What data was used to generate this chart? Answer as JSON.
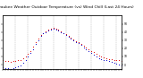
{
  "title": "Milwaukee Weather Outdoor Temperature (vs) Wind Chill (Last 24 Hours)",
  "title_fontsize": 3.2,
  "background_color": "#ffffff",
  "plot_bg_color": "#ffffff",
  "grid_color": "#aaaaaa",
  "ylim": [
    -5,
    60
  ],
  "xlim": [
    0,
    47
  ],
  "yticks": [
    0,
    10,
    20,
    30,
    40,
    50
  ],
  "ytick_labels_right": [
    "0",
    "10",
    "20",
    "30",
    "40",
    "50"
  ],
  "temp_color": "#dd0000",
  "windchill_color": "#0000cc",
  "temp_x": [
    0,
    1,
    2,
    3,
    4,
    5,
    6,
    7,
    8,
    9,
    10,
    11,
    12,
    13,
    14,
    15,
    16,
    17,
    18,
    19,
    20,
    21,
    22,
    23,
    24,
    25,
    26,
    27,
    28,
    29,
    30,
    31,
    32,
    33,
    34,
    35,
    36,
    37,
    38,
    39,
    40,
    41,
    42,
    43,
    44,
    45,
    46,
    47
  ],
  "temp_y": [
    5,
    4,
    4,
    3,
    4,
    4,
    5,
    6,
    8,
    10,
    13,
    17,
    22,
    27,
    32,
    36,
    39,
    41,
    43,
    44,
    45,
    44,
    43,
    41,
    39,
    37,
    35,
    33,
    31,
    29,
    27,
    25,
    23,
    21,
    19,
    17,
    15,
    13,
    11,
    10,
    9,
    8,
    7,
    7,
    6,
    6,
    5,
    4
  ],
  "windchill_x": [
    0,
    1,
    2,
    3,
    4,
    5,
    6,
    7,
    8,
    9,
    10,
    11,
    12,
    13,
    14,
    15,
    16,
    17,
    18,
    19,
    20,
    21,
    22,
    23,
    24,
    25,
    26,
    27,
    28,
    29,
    30,
    31,
    32,
    33,
    34,
    35,
    36,
    37,
    38,
    39,
    40,
    41,
    42,
    43,
    44,
    45,
    46,
    47
  ],
  "windchill_y": [
    -3,
    -4,
    -4,
    -5,
    -4,
    -3,
    -2,
    -1,
    2,
    6,
    10,
    14,
    19,
    25,
    30,
    35,
    38,
    40,
    42,
    43,
    44,
    43,
    42,
    40,
    38,
    36,
    34,
    32,
    30,
    28,
    26,
    24,
    21,
    19,
    17,
    14,
    12,
    10,
    8,
    7,
    6,
    5,
    4,
    3,
    2,
    1,
    0,
    -1
  ],
  "vgrid_positions": [
    0,
    5,
    10,
    15,
    20,
    25,
    30,
    35,
    40,
    45
  ],
  "marker_size": 1.0,
  "line_width": 0.6
}
